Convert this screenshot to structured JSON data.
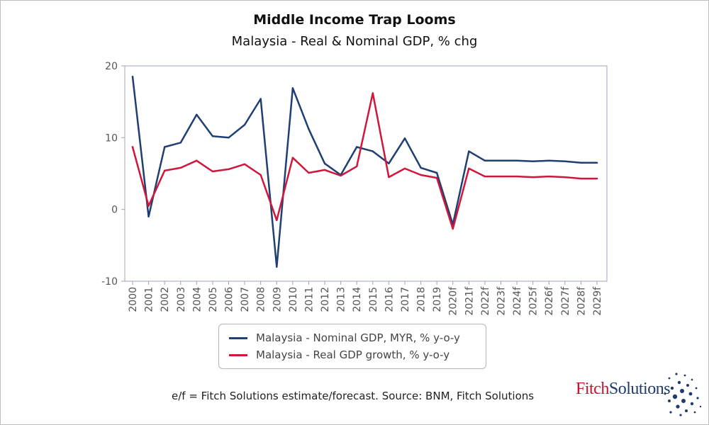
{
  "chart_data": {
    "type": "line",
    "title": "Middle Income Trap Looms",
    "subtitle": "Malaysia - Real & Nominal GDP, % chg",
    "xlabel": "",
    "ylabel": "",
    "ylim": [
      -10,
      20
    ],
    "yticks": [
      -10,
      0,
      10,
      20
    ],
    "grid": false,
    "legend_position": "bottom",
    "categories": [
      "2000",
      "2001",
      "2002",
      "2003",
      "2004",
      "2005",
      "2006",
      "2007",
      "2008",
      "2009",
      "2010",
      "2011",
      "2012",
      "2013",
      "2014",
      "2015",
      "2016",
      "2017",
      "2018",
      "2019",
      "2020f",
      "2021f",
      "2022f",
      "2023f",
      "2024f",
      "2025f",
      "2026f",
      "2027f",
      "2028f",
      "2029f"
    ],
    "series": [
      {
        "name": "Malaysia - Nominal GDP, MYR, % y-o-y",
        "color": "#1f3f73",
        "values": [
          18.5,
          -1.0,
          8.7,
          9.3,
          13.2,
          10.2,
          10.0,
          11.8,
          15.4,
          -8.0,
          16.9,
          11.2,
          6.4,
          4.8,
          8.7,
          8.1,
          6.4,
          9.9,
          5.8,
          5.1,
          -2.1,
          8.1,
          6.8,
          6.8,
          6.8,
          6.7,
          6.8,
          6.7,
          6.5,
          6.5
        ]
      },
      {
        "name": "Malaysia - Real GDP growth, % y-o-y",
        "color": "#d0163b",
        "values": [
          8.7,
          0.5,
          5.4,
          5.8,
          6.8,
          5.3,
          5.6,
          6.3,
          4.8,
          -1.5,
          7.2,
          5.1,
          5.5,
          4.7,
          6.0,
          16.2,
          4.5,
          5.7,
          4.8,
          4.4,
          -2.7,
          5.7,
          4.6,
          4.6,
          4.6,
          4.5,
          4.6,
          4.5,
          4.3,
          4.3
        ]
      }
    ]
  },
  "footnote": "e/f = Fitch Solutions estimate/forecast. Source: BNM, Fitch Solutions",
  "logo": {
    "part1": "Fitch",
    "part2": "Solutions"
  },
  "colors": {
    "nominal": "#1f3f73",
    "real": "#d0163b",
    "axis": "#9aa3b8",
    "logo_red": "#c8102e",
    "logo_blue": "#1f3a6e"
  }
}
